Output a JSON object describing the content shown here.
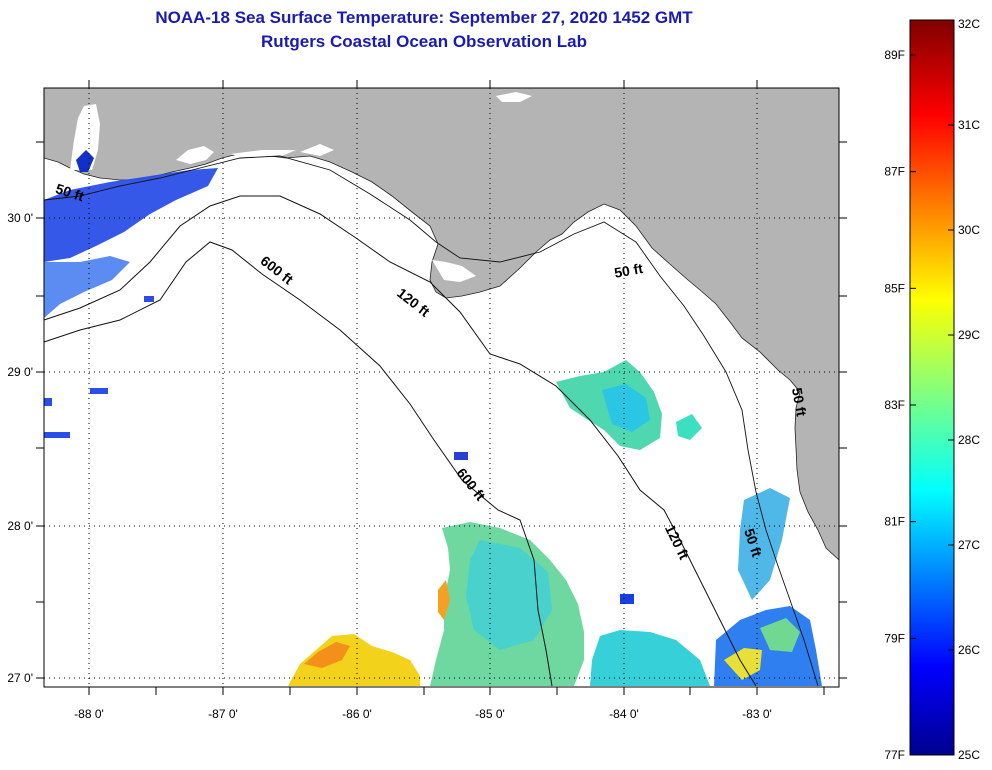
{
  "title": {
    "line1": "NOAA-18 Sea Surface Temperature:  September 27, 2020 1452 GMT",
    "line2": "Rutgers Coastal Ocean Observation Lab"
  },
  "map": {
    "lat_labels": [
      "30 0'",
      "29 0'",
      "28 0'",
      "27 0'"
    ],
    "lat_values": [
      30,
      29,
      28,
      27
    ],
    "lon_labels": [
      "-88 0'",
      "-87 0'",
      "-86 0'",
      "-85 0'",
      "-84 0'",
      "-83 0'"
    ],
    "lon_values": [
      -88,
      -87,
      -86,
      -85,
      -84,
      -83
    ],
    "lon_range": [
      -88.33,
      -82.45
    ],
    "lat_range": [
      26.95,
      30.85
    ],
    "contour_labels": [
      {
        "text": "50 ft",
        "lon": -88.15,
        "lat": 30.14,
        "rot": 18
      },
      {
        "text": "600 ft",
        "lon": -86.63,
        "lat": 29.64,
        "rot": 38
      },
      {
        "text": "120 ft",
        "lon": -85.62,
        "lat": 29.43,
        "rot": 38
      },
      {
        "text": "50 ft",
        "lon": -84.0,
        "lat": 29.63,
        "rot": -10
      },
      {
        "text": "600 ft",
        "lon": -85.2,
        "lat": 28.25,
        "rot": 52
      },
      {
        "text": "120 ft",
        "lon": -83.68,
        "lat": 27.88,
        "rot": 64
      },
      {
        "text": "50 ft",
        "lon": -83.12,
        "lat": 27.88,
        "rot": 72
      },
      {
        "text": "50 ft",
        "lon": -82.78,
        "lat": 28.8,
        "rot": 80
      }
    ],
    "colors": {
      "land": "#b4b4b4",
      "water_nodata": "#ffffff",
      "frame": "#000000"
    }
  },
  "colorbar": {
    "celsius_labels": [
      "32C",
      "31C",
      "30C",
      "29C",
      "28C",
      "27C",
      "26C",
      "25C"
    ],
    "celsius_values": [
      32,
      31,
      30,
      29,
      28,
      27,
      26,
      25
    ],
    "fahrenheit_labels": [
      "89F",
      "87F",
      "85F",
      "83F",
      "81F",
      "79F",
      "77F"
    ],
    "fahrenheit_values": [
      89,
      87,
      85,
      83,
      81,
      79,
      77
    ],
    "range_c": [
      25,
      32
    ]
  }
}
